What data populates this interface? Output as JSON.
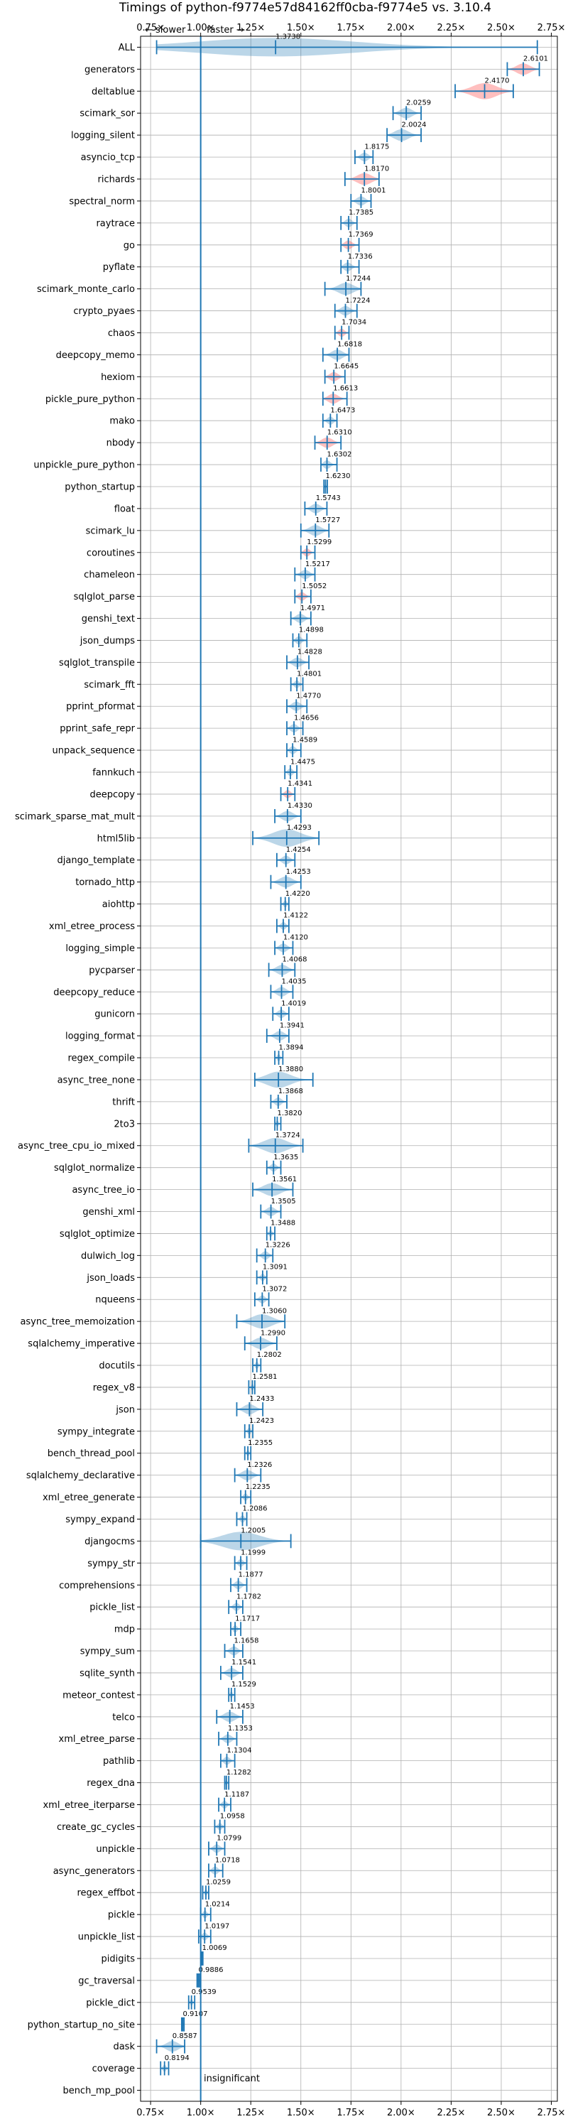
{
  "chart_data": {
    "type": "violin",
    "title": "Timings of python-f9774e57d84162ff0cba-f9774e5 vs. 3.10.4",
    "direction_labels": {
      "slower": "← slower",
      "faster": "faster →"
    },
    "significance_note": "insignificant",
    "xlim": [
      0.7,
      2.78
    ],
    "xticks": [
      "0.75×",
      "1.00×",
      "1.25×",
      "1.50×",
      "1.75×",
      "2.00×",
      "2.25×",
      "2.50×",
      "2.75×"
    ],
    "xtick_values": [
      0.75,
      1.0,
      1.25,
      1.5,
      1.75,
      2.0,
      2.25,
      2.5,
      2.75
    ],
    "reference_line": 1.0,
    "grid": true,
    "benchmarks": [
      {
        "name": "ALL",
        "value": 1.3738,
        "label": "1.3738",
        "lo": 0.78,
        "hi": 2.68,
        "highlight": false
      },
      {
        "name": "generators",
        "value": 2.6101,
        "label": "2.6101",
        "lo": 2.53,
        "hi": 2.69,
        "highlight": true
      },
      {
        "name": "deltablue",
        "value": 2.417,
        "label": "2.4170",
        "lo": 2.27,
        "hi": 2.56,
        "highlight": true
      },
      {
        "name": "scimark_sor",
        "value": 2.0259,
        "label": "2.0259",
        "lo": 1.96,
        "hi": 2.1,
        "highlight": false
      },
      {
        "name": "logging_silent",
        "value": 2.0024,
        "label": "2.0024",
        "lo": 1.93,
        "hi": 2.1,
        "highlight": false
      },
      {
        "name": "asyncio_tcp",
        "value": 1.8175,
        "label": "1.8175",
        "lo": 1.77,
        "hi": 1.86,
        "highlight": false
      },
      {
        "name": "richards",
        "value": 1.817,
        "label": "1.8170",
        "lo": 1.72,
        "hi": 1.89,
        "highlight": true
      },
      {
        "name": "spectral_norm",
        "value": 1.8001,
        "label": "1.8001",
        "lo": 1.75,
        "hi": 1.85,
        "highlight": false
      },
      {
        "name": "raytrace",
        "value": 1.7385,
        "label": "1.7385",
        "lo": 1.7,
        "hi": 1.78,
        "highlight": false
      },
      {
        "name": "go",
        "value": 1.7369,
        "label": "1.7369",
        "lo": 1.7,
        "hi": 1.79,
        "highlight": true
      },
      {
        "name": "pyflate",
        "value": 1.7336,
        "label": "1.7336",
        "lo": 1.7,
        "hi": 1.79,
        "highlight": false
      },
      {
        "name": "scimark_monte_carlo",
        "value": 1.7244,
        "label": "1.7244",
        "lo": 1.62,
        "hi": 1.8,
        "highlight": false
      },
      {
        "name": "crypto_pyaes",
        "value": 1.7224,
        "label": "1.7224",
        "lo": 1.67,
        "hi": 1.78,
        "highlight": false
      },
      {
        "name": "chaos",
        "value": 1.7034,
        "label": "1.7034",
        "lo": 1.67,
        "hi": 1.74,
        "highlight": true
      },
      {
        "name": "deepcopy_memo",
        "value": 1.6818,
        "label": "1.6818",
        "lo": 1.61,
        "hi": 1.74,
        "highlight": false
      },
      {
        "name": "hexiom",
        "value": 1.6645,
        "label": "1.6645",
        "lo": 1.62,
        "hi": 1.72,
        "highlight": true
      },
      {
        "name": "pickle_pure_python",
        "value": 1.6613,
        "label": "1.6613",
        "lo": 1.61,
        "hi": 1.73,
        "highlight": true
      },
      {
        "name": "mako",
        "value": 1.6473,
        "label": "1.6473",
        "lo": 1.61,
        "hi": 1.68,
        "highlight": false
      },
      {
        "name": "nbody",
        "value": 1.631,
        "label": "1.6310",
        "lo": 1.57,
        "hi": 1.7,
        "highlight": true
      },
      {
        "name": "unpickle_pure_python",
        "value": 1.6302,
        "label": "1.6302",
        "lo": 1.6,
        "hi": 1.68,
        "highlight": false
      },
      {
        "name": "python_startup",
        "value": 1.623,
        "label": "1.6230",
        "lo": 1.615,
        "hi": 1.632,
        "highlight": false
      },
      {
        "name": "float",
        "value": 1.5743,
        "label": "1.5743",
        "lo": 1.52,
        "hi": 1.63,
        "highlight": false
      },
      {
        "name": "scimark_lu",
        "value": 1.5727,
        "label": "1.5727",
        "lo": 1.5,
        "hi": 1.64,
        "highlight": false
      },
      {
        "name": "coroutines",
        "value": 1.5299,
        "label": "1.5299",
        "lo": 1.5,
        "hi": 1.57,
        "highlight": true
      },
      {
        "name": "chameleon",
        "value": 1.5217,
        "label": "1.5217",
        "lo": 1.47,
        "hi": 1.57,
        "highlight": false
      },
      {
        "name": "sqlglot_parse",
        "value": 1.5052,
        "label": "1.5052",
        "lo": 1.47,
        "hi": 1.55,
        "highlight": true
      },
      {
        "name": "genshi_text",
        "value": 1.4971,
        "label": "1.4971",
        "lo": 1.45,
        "hi": 1.55,
        "highlight": false
      },
      {
        "name": "json_dumps",
        "value": 1.4898,
        "label": "1.4898",
        "lo": 1.46,
        "hi": 1.53,
        "highlight": false
      },
      {
        "name": "sqlglot_transpile",
        "value": 1.4828,
        "label": "1.4828",
        "lo": 1.43,
        "hi": 1.54,
        "highlight": false
      },
      {
        "name": "scimark_fft",
        "value": 1.4801,
        "label": "1.4801",
        "lo": 1.45,
        "hi": 1.51,
        "highlight": false
      },
      {
        "name": "pprint_pformat",
        "value": 1.477,
        "label": "1.4770",
        "lo": 1.43,
        "hi": 1.53,
        "highlight": false
      },
      {
        "name": "pprint_safe_repr",
        "value": 1.4656,
        "label": "1.4656",
        "lo": 1.43,
        "hi": 1.51,
        "highlight": false
      },
      {
        "name": "unpack_sequence",
        "value": 1.4589,
        "label": "1.4589",
        "lo": 1.43,
        "hi": 1.5,
        "highlight": false
      },
      {
        "name": "fannkuch",
        "value": 1.4475,
        "label": "1.4475",
        "lo": 1.42,
        "hi": 1.48,
        "highlight": false
      },
      {
        "name": "deepcopy",
        "value": 1.4341,
        "label": "1.4341",
        "lo": 1.4,
        "hi": 1.47,
        "highlight": true
      },
      {
        "name": "scimark_sparse_mat_mult",
        "value": 1.433,
        "label": "1.4330",
        "lo": 1.37,
        "hi": 1.5,
        "highlight": false
      },
      {
        "name": "html5lib",
        "value": 1.4293,
        "label": "1.4293",
        "lo": 1.26,
        "hi": 1.59,
        "highlight": false
      },
      {
        "name": "django_template",
        "value": 1.4254,
        "label": "1.4254",
        "lo": 1.38,
        "hi": 1.47,
        "highlight": false
      },
      {
        "name": "tornado_http",
        "value": 1.4253,
        "label": "1.4253",
        "lo": 1.35,
        "hi": 1.5,
        "highlight": false
      },
      {
        "name": "aiohttp",
        "value": 1.422,
        "label": "1.4220",
        "lo": 1.4,
        "hi": 1.44,
        "highlight": false
      },
      {
        "name": "xml_etree_process",
        "value": 1.4122,
        "label": "1.4122",
        "lo": 1.38,
        "hi": 1.44,
        "highlight": false
      },
      {
        "name": "logging_simple",
        "value": 1.412,
        "label": "1.4120",
        "lo": 1.37,
        "hi": 1.46,
        "highlight": false
      },
      {
        "name": "pycparser",
        "value": 1.4068,
        "label": "1.4068",
        "lo": 1.34,
        "hi": 1.47,
        "highlight": false
      },
      {
        "name": "deepcopy_reduce",
        "value": 1.4035,
        "label": "1.4035",
        "lo": 1.35,
        "hi": 1.46,
        "highlight": false
      },
      {
        "name": "gunicorn",
        "value": 1.4019,
        "label": "1.4019",
        "lo": 1.36,
        "hi": 1.44,
        "highlight": false
      },
      {
        "name": "logging_format",
        "value": 1.3941,
        "label": "1.3941",
        "lo": 1.33,
        "hi": 1.44,
        "highlight": false
      },
      {
        "name": "regex_compile",
        "value": 1.3894,
        "label": "1.3894",
        "lo": 1.37,
        "hi": 1.41,
        "highlight": false
      },
      {
        "name": "async_tree_none",
        "value": 1.388,
        "label": "1.3880",
        "lo": 1.27,
        "hi": 1.56,
        "highlight": false
      },
      {
        "name": "thrift",
        "value": 1.3868,
        "label": "1.3868",
        "lo": 1.35,
        "hi": 1.43,
        "highlight": false
      },
      {
        "name": "2to3",
        "value": 1.382,
        "label": "1.3820",
        "lo": 1.37,
        "hi": 1.4,
        "highlight": false
      },
      {
        "name": "async_tree_cpu_io_mixed",
        "value": 1.3724,
        "label": "1.3724",
        "lo": 1.24,
        "hi": 1.51,
        "highlight": false
      },
      {
        "name": "sqlglot_normalize",
        "value": 1.3635,
        "label": "1.3635",
        "lo": 1.33,
        "hi": 1.4,
        "highlight": false
      },
      {
        "name": "async_tree_io",
        "value": 1.3561,
        "label": "1.3561",
        "lo": 1.26,
        "hi": 1.46,
        "highlight": false
      },
      {
        "name": "genshi_xml",
        "value": 1.3505,
        "label": "1.3505",
        "lo": 1.3,
        "hi": 1.4,
        "highlight": false
      },
      {
        "name": "sqlglot_optimize",
        "value": 1.3488,
        "label": "1.3488",
        "lo": 1.33,
        "hi": 1.37,
        "highlight": false
      },
      {
        "name": "dulwich_log",
        "value": 1.3226,
        "label": "1.3226",
        "lo": 1.28,
        "hi": 1.36,
        "highlight": false
      },
      {
        "name": "json_loads",
        "value": 1.3091,
        "label": "1.3091",
        "lo": 1.28,
        "hi": 1.33,
        "highlight": false
      },
      {
        "name": "nqueens",
        "value": 1.3072,
        "label": "1.3072",
        "lo": 1.27,
        "hi": 1.34,
        "highlight": false
      },
      {
        "name": "async_tree_memoization",
        "value": 1.306,
        "label": "1.3060",
        "lo": 1.18,
        "hi": 1.42,
        "highlight": false
      },
      {
        "name": "sqlalchemy_imperative",
        "value": 1.299,
        "label": "1.2990",
        "lo": 1.22,
        "hi": 1.38,
        "highlight": false
      },
      {
        "name": "docutils",
        "value": 1.2802,
        "label": "1.2802",
        "lo": 1.26,
        "hi": 1.3,
        "highlight": false
      },
      {
        "name": "regex_v8",
        "value": 1.2581,
        "label": "1.2581",
        "lo": 1.24,
        "hi": 1.27,
        "highlight": false
      },
      {
        "name": "json",
        "value": 1.2433,
        "label": "1.2433",
        "lo": 1.18,
        "hi": 1.31,
        "highlight": false
      },
      {
        "name": "sympy_integrate",
        "value": 1.2423,
        "label": "1.2423",
        "lo": 1.22,
        "hi": 1.26,
        "highlight": false
      },
      {
        "name": "bench_thread_pool",
        "value": 1.2355,
        "label": "1.2355",
        "lo": 1.22,
        "hi": 1.25,
        "highlight": false
      },
      {
        "name": "sqlalchemy_declarative",
        "value": 1.2326,
        "label": "1.2326",
        "lo": 1.17,
        "hi": 1.3,
        "highlight": false
      },
      {
        "name": "xml_etree_generate",
        "value": 1.2235,
        "label": "1.2235",
        "lo": 1.2,
        "hi": 1.25,
        "highlight": false
      },
      {
        "name": "sympy_expand",
        "value": 1.2086,
        "label": "1.2086",
        "lo": 1.18,
        "hi": 1.23,
        "highlight": false
      },
      {
        "name": "djangocms",
        "value": 1.2005,
        "label": "1.2005",
        "lo": 1.0,
        "hi": 1.45,
        "highlight": false
      },
      {
        "name": "sympy_str",
        "value": 1.1999,
        "label": "1.1999",
        "lo": 1.17,
        "hi": 1.23,
        "highlight": false
      },
      {
        "name": "comprehensions",
        "value": 1.1877,
        "label": "1.1877",
        "lo": 1.15,
        "hi": 1.23,
        "highlight": false
      },
      {
        "name": "pickle_list",
        "value": 1.1782,
        "label": "1.1782",
        "lo": 1.14,
        "hi": 1.21,
        "highlight": false
      },
      {
        "name": "mdp",
        "value": 1.1717,
        "label": "1.1717",
        "lo": 1.15,
        "hi": 1.2,
        "highlight": false
      },
      {
        "name": "sympy_sum",
        "value": 1.1658,
        "label": "1.1658",
        "lo": 1.12,
        "hi": 1.21,
        "highlight": false
      },
      {
        "name": "sqlite_synth",
        "value": 1.1541,
        "label": "1.1541",
        "lo": 1.1,
        "hi": 1.21,
        "highlight": false
      },
      {
        "name": "meteor_contest",
        "value": 1.1529,
        "label": "1.1529",
        "lo": 1.14,
        "hi": 1.17,
        "highlight": false
      },
      {
        "name": "telco",
        "value": 1.1453,
        "label": "1.1453",
        "lo": 1.08,
        "hi": 1.21,
        "highlight": false
      },
      {
        "name": "xml_etree_parse",
        "value": 1.1353,
        "label": "1.1353",
        "lo": 1.09,
        "hi": 1.18,
        "highlight": false
      },
      {
        "name": "pathlib",
        "value": 1.1304,
        "label": "1.1304",
        "lo": 1.1,
        "hi": 1.17,
        "highlight": false
      },
      {
        "name": "regex_dna",
        "value": 1.1282,
        "label": "1.1282",
        "lo": 1.12,
        "hi": 1.14,
        "highlight": false
      },
      {
        "name": "xml_etree_iterparse",
        "value": 1.1187,
        "label": "1.1187",
        "lo": 1.09,
        "hi": 1.15,
        "highlight": false
      },
      {
        "name": "create_gc_cycles",
        "value": 1.0958,
        "label": "1.0958",
        "lo": 1.07,
        "hi": 1.12,
        "highlight": false
      },
      {
        "name": "unpickle",
        "value": 1.0799,
        "label": "1.0799",
        "lo": 1.04,
        "hi": 1.12,
        "highlight": false
      },
      {
        "name": "async_generators",
        "value": 1.0718,
        "label": "1.0718",
        "lo": 1.04,
        "hi": 1.11,
        "highlight": false
      },
      {
        "name": "regex_effbot",
        "value": 1.0259,
        "label": "1.0259",
        "lo": 1.01,
        "hi": 1.04,
        "highlight": false
      },
      {
        "name": "pickle",
        "value": 1.0214,
        "label": "1.0214",
        "lo": 1.0,
        "hi": 1.05,
        "highlight": false
      },
      {
        "name": "unpickle_list",
        "value": 1.0197,
        "label": "1.0197",
        "lo": 0.99,
        "hi": 1.05,
        "highlight": false
      },
      {
        "name": "pidigits",
        "value": 1.0069,
        "label": "1.0069",
        "lo": 1.003,
        "hi": 1.011,
        "highlight": false
      },
      {
        "name": "gc_traversal",
        "value": 0.9886,
        "label": "0.9886",
        "lo": 0.982,
        "hi": 0.995,
        "highlight": false
      },
      {
        "name": "pickle_dict",
        "value": 0.9539,
        "label": "0.9539",
        "lo": 0.94,
        "hi": 0.97,
        "highlight": false
      },
      {
        "name": "python_startup_no_site",
        "value": 0.9107,
        "label": "0.9107",
        "lo": 0.905,
        "hi": 0.917,
        "highlight": false
      },
      {
        "name": "dask",
        "value": 0.8587,
        "label": "0.8587",
        "lo": 0.78,
        "hi": 0.92,
        "highlight": false
      },
      {
        "name": "coverage",
        "value": 0.8194,
        "label": "0.8194",
        "lo": 0.8,
        "hi": 0.84,
        "highlight": false
      },
      {
        "name": "bench_mp_pool",
        "value": null,
        "label": "",
        "lo": null,
        "hi": null,
        "highlight": false
      }
    ],
    "colors": {
      "line": "#1f77b4",
      "violin": "#1f77b4",
      "violin_alpha": 0.3,
      "violin_highlight": "#ff2a2a",
      "highlight_alpha": 0.3,
      "grid": "#b0b0b0"
    }
  }
}
